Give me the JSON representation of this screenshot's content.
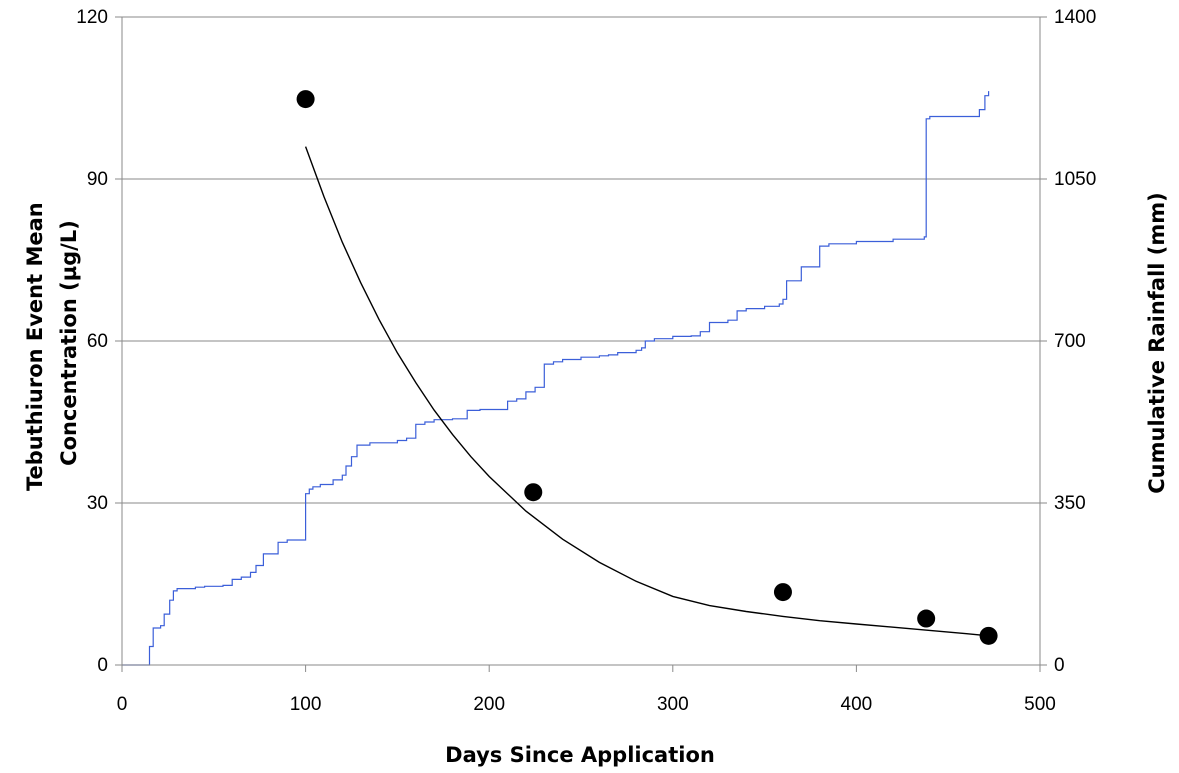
{
  "chart_data": {
    "type": "line",
    "title": "",
    "xlabel": "Days Since Application",
    "ylabel_lines": [
      "Tebuthiuron Event Mean",
      "Concentration  (µg/L)"
    ],
    "y2label": "Cumulative Rainfall (mm)",
    "xlim": [
      0,
      500
    ],
    "ylim": [
      0,
      120
    ],
    "y2lim": [
      0,
      1400
    ],
    "x_ticks": [
      0,
      100,
      200,
      300,
      400,
      500
    ],
    "y_ticks": [
      0,
      30,
      60,
      90,
      120
    ],
    "y2_ticks": [
      0,
      350,
      700,
      1050,
      1400
    ],
    "grid": "horizontal",
    "legend": "none",
    "colors": {
      "rainfall": "#3b5fd9",
      "fit": "#000000",
      "points": "#000000"
    },
    "series": [
      {
        "type": "scatter",
        "axis": "left",
        "x": [
          100,
          224,
          360,
          438,
          472
        ],
        "y": [
          104.8,
          32.0,
          13.5,
          8.6,
          5.4
        ]
      },
      {
        "type": "line",
        "axis": "left",
        "x": [
          100,
          110,
          120,
          130,
          140,
          150,
          160,
          170,
          180,
          190,
          200,
          220,
          240,
          260,
          280,
          300,
          320,
          340,
          360,
          380,
          400,
          420,
          440,
          460,
          472
        ],
        "y": [
          96.0,
          86.7,
          78.3,
          70.8,
          64.0,
          57.8,
          52.3,
          47.2,
          42.7,
          38.6,
          34.9,
          28.5,
          23.3,
          19.0,
          15.5,
          12.7,
          11.0,
          9.9,
          9.0,
          8.2,
          7.6,
          7.0,
          6.4,
          5.8,
          5.4
        ]
      },
      {
        "type": "step",
        "axis": "right",
        "x": [
          0,
          15,
          17,
          21,
          23,
          26,
          28,
          30,
          40,
          45,
          55,
          60,
          65,
          70,
          73,
          77,
          85,
          90,
          100,
          102,
          104,
          108,
          115,
          120,
          122,
          125,
          128,
          135,
          150,
          155,
          160,
          165,
          170,
          180,
          188,
          195,
          210,
          215,
          220,
          225,
          230,
          235,
          240,
          250,
          260,
          265,
          270,
          275,
          280,
          283,
          285,
          290,
          300,
          310,
          315,
          320,
          330,
          335,
          340,
          350,
          358,
          360,
          362,
          370,
          380,
          385,
          390,
          400,
          420,
          437,
          438,
          440,
          460,
          463,
          467,
          470,
          472
        ],
        "y": [
          0,
          40,
          80,
          85,
          110,
          140,
          160,
          165,
          168,
          170,
          172,
          185,
          190,
          200,
          215,
          240,
          265,
          270,
          370,
          380,
          385,
          390,
          400,
          410,
          430,
          450,
          475,
          480,
          485,
          490,
          520,
          525,
          530,
          532,
          550,
          552,
          570,
          575,
          590,
          600,
          650,
          655,
          660,
          665,
          668,
          670,
          675,
          675,
          680,
          685,
          700,
          705,
          710,
          711,
          720,
          740,
          745,
          765,
          770,
          775,
          780,
          790,
          830,
          860,
          905,
          910,
          910,
          915,
          920,
          925,
          1180,
          1185,
          1185,
          1185,
          1200,
          1230,
          1240
        ]
      }
    ]
  }
}
